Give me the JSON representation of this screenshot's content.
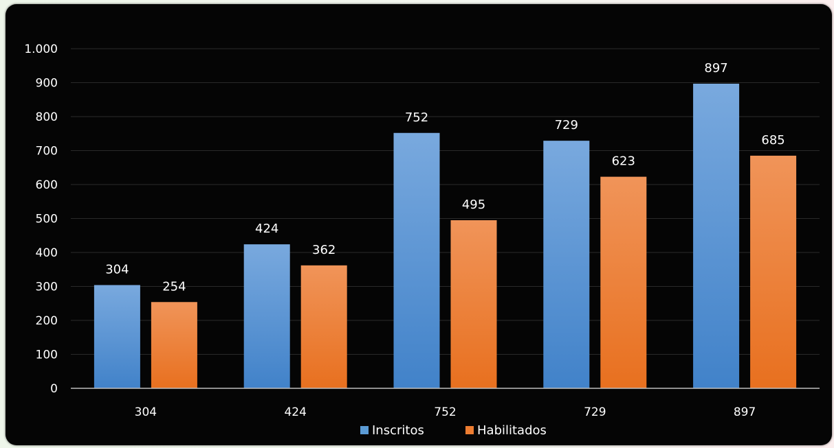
{
  "chart_data": {
    "type": "bar",
    "categories": [
      "304",
      "424",
      "752",
      "729",
      "897"
    ],
    "series": [
      {
        "name": "Inscritos",
        "values": [
          304,
          424,
          752,
          729,
          897
        ]
      },
      {
        "name": "Habilitados",
        "values": [
          254,
          362,
          495,
          623,
          685
        ]
      }
    ],
    "ylim": [
      0,
      1000
    ],
    "yticks": [
      0,
      100,
      200,
      300,
      400,
      500,
      600,
      700,
      800,
      900,
      1000
    ],
    "ytick_labels": [
      "0",
      "100",
      "200",
      "300",
      "400",
      "500",
      "600",
      "700",
      "800",
      "900",
      "1.000"
    ],
    "grid": true,
    "legend_position": "bottom",
    "data_labels": true,
    "colors": {
      "Inscritos": "#5b9bd5",
      "Habilitados": "#ed7d31",
      "background": "#050505",
      "text": "#ffffff",
      "grid": "#2a2a2a"
    }
  }
}
